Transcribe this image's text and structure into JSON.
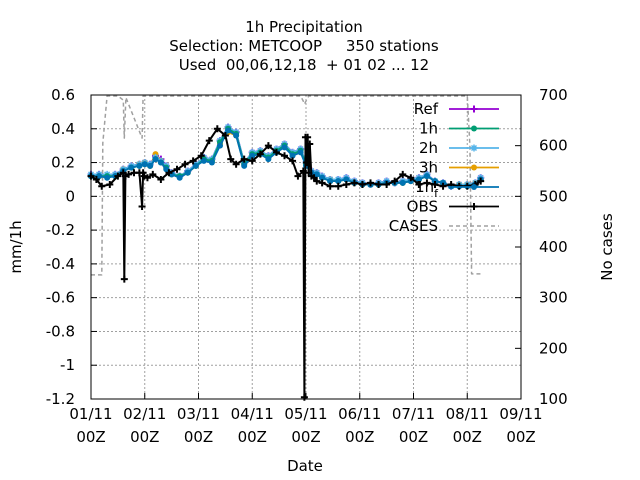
{
  "chart_data": {
    "type": "line",
    "title": {
      "line1": "1h Precipitation",
      "line2": "Selection: METCOOP     350 stations",
      "line3": "Used  00,06,12,18  + 01 02 ... 12"
    },
    "xlabel": "Date",
    "ylabel": "mm/1h",
    "y2label": "No cases",
    "x_ticks": [
      {
        "top": "01/11",
        "bottom": "00Z"
      },
      {
        "top": "02/11",
        "bottom": "00Z"
      },
      {
        "top": "03/11",
        "bottom": "00Z"
      },
      {
        "top": "04/11",
        "bottom": "00Z"
      },
      {
        "top": "05/11",
        "bottom": "00Z"
      },
      {
        "top": "06/11",
        "bottom": "00Z"
      },
      {
        "top": "07/11",
        "bottom": "00Z"
      },
      {
        "top": "08/11",
        "bottom": "00Z"
      },
      {
        "top": "09/11",
        "bottom": "00Z"
      }
    ],
    "xlim": [
      0,
      8
    ],
    "ylim": [
      -1.2,
      0.6
    ],
    "y_ticks": [
      {
        "value": 0.6,
        "label": "0.6"
      },
      {
        "value": 0.4,
        "label": "0.4"
      },
      {
        "value": 0.2,
        "label": "0.2"
      },
      {
        "value": 0,
        "label": "0"
      },
      {
        "value": -0.2,
        "label": "-0.2"
      },
      {
        "value": -0.4,
        "label": "-0.4"
      },
      {
        "value": -0.6,
        "label": "-0.6"
      },
      {
        "value": -0.8,
        "label": "-0.8"
      },
      {
        "value": -1,
        "label": "-1"
      },
      {
        "value": -1.2,
        "label": "-1.2"
      }
    ],
    "y2lim": [
      100,
      700
    ],
    "y2_ticks": [
      {
        "value": 700,
        "label": "700"
      },
      {
        "value": 600,
        "label": "600"
      },
      {
        "value": 500,
        "label": "500"
      },
      {
        "value": 400,
        "label": "400"
      },
      {
        "value": 300,
        "label": "300"
      },
      {
        "value": 200,
        "label": "200"
      },
      {
        "value": 100,
        "label": "100"
      }
    ],
    "grid": true,
    "legend_position": "top-right",
    "series": [
      {
        "name": "Ref",
        "label_main": "Ref",
        "label_sub": "",
        "color": "#9400d3",
        "marker": "plus",
        "axis": "y",
        "x": [
          0,
          0.15,
          0.3,
          0.45,
          0.6,
          0.75,
          0.9,
          1.0,
          1.1,
          1.2,
          1.3,
          1.4,
          1.5,
          1.65,
          1.8,
          1.95,
          2.1,
          2.25,
          2.4,
          2.55,
          2.7,
          2.85,
          3.0,
          3.15,
          3.3,
          3.45,
          3.6,
          3.75,
          3.9,
          4.0,
          4.1,
          4.2,
          4.3,
          4.45,
          4.6,
          4.75,
          4.9,
          5.05,
          5.2,
          5.35,
          5.5,
          5.65,
          5.8,
          5.95,
          6.1,
          6.25,
          6.4,
          6.55,
          6.7,
          6.85,
          7.0,
          7.15,
          7.25
        ],
        "y": [
          0.13,
          0.13,
          0.12,
          0.13,
          0.16,
          0.18,
          0.19,
          0.2,
          0.19,
          0.24,
          0.22,
          0.18,
          0.14,
          0.12,
          0.15,
          0.19,
          0.23,
          0.22,
          0.33,
          0.41,
          0.38,
          0.2,
          0.26,
          0.27,
          0.24,
          0.28,
          0.31,
          0.26,
          0.28,
          0.2,
          0.15,
          0.14,
          0.12,
          0.1,
          0.1,
          0.11,
          0.09,
          0.08,
          0.07,
          0.08,
          0.09,
          0.08,
          0.09,
          0.1,
          0.11,
          0.13,
          0.09,
          0.08,
          0.06,
          0.07,
          0.07,
          0.08,
          0.11
        ]
      },
      {
        "name": "1h",
        "label_main": "1h",
        "label_sub": "",
        "color": "#009e73",
        "marker": "circle",
        "axis": "y",
        "x": [
          0,
          0.15,
          0.3,
          0.45,
          0.6,
          0.75,
          0.9,
          1.0,
          1.1,
          1.2,
          1.3,
          1.4,
          1.5,
          1.65,
          1.8,
          1.95,
          2.1,
          2.25,
          2.4,
          2.55,
          2.7,
          2.85,
          3.0,
          3.15,
          3.3,
          3.45,
          3.6,
          3.75,
          3.9,
          4.0,
          4.1,
          4.2,
          4.3,
          4.45,
          4.6,
          4.75,
          4.9,
          5.05,
          5.2,
          5.35,
          5.5,
          5.65,
          5.8,
          5.95,
          6.1,
          6.25,
          6.4,
          6.55,
          6.7,
          6.85,
          7.0,
          7.15,
          7.25
        ],
        "y": [
          0.12,
          0.12,
          0.12,
          0.12,
          0.15,
          0.17,
          0.18,
          0.19,
          0.18,
          0.22,
          0.2,
          0.17,
          0.13,
          0.12,
          0.14,
          0.18,
          0.22,
          0.21,
          0.32,
          0.4,
          0.37,
          0.19,
          0.25,
          0.26,
          0.23,
          0.27,
          0.3,
          0.25,
          0.27,
          0.19,
          0.14,
          0.13,
          0.11,
          0.09,
          0.09,
          0.1,
          0.08,
          0.07,
          0.07,
          0.07,
          0.08,
          0.08,
          0.08,
          0.09,
          0.1,
          0.12,
          0.09,
          0.08,
          0.06,
          0.06,
          0.06,
          0.07,
          0.1
        ]
      },
      {
        "name": "2h",
        "label_main": "2h",
        "label_sub": "",
        "color": "#56b4e9",
        "marker": "star",
        "axis": "y",
        "x": [
          0,
          0.15,
          0.3,
          0.45,
          0.6,
          0.75,
          0.9,
          1.0,
          1.1,
          1.2,
          1.3,
          1.4,
          1.5,
          1.65,
          1.8,
          1.95,
          2.1,
          2.25,
          2.4,
          2.55,
          2.7,
          2.85,
          3.0,
          3.15,
          3.3,
          3.45,
          3.6,
          3.75,
          3.9,
          4.0,
          4.1,
          4.2,
          4.3,
          4.45,
          4.6,
          4.75,
          4.9,
          5.05,
          5.2,
          5.35,
          5.5,
          5.65,
          5.8,
          5.95,
          6.1,
          6.25,
          6.4,
          6.55,
          6.7,
          6.85,
          7.0,
          7.15,
          7.25
        ],
        "y": [
          0.13,
          0.13,
          0.13,
          0.13,
          0.16,
          0.18,
          0.19,
          0.2,
          0.19,
          0.23,
          0.21,
          0.18,
          0.14,
          0.12,
          0.15,
          0.19,
          0.23,
          0.22,
          0.33,
          0.41,
          0.38,
          0.2,
          0.26,
          0.27,
          0.24,
          0.28,
          0.31,
          0.26,
          0.28,
          0.2,
          0.15,
          0.14,
          0.12,
          0.1,
          0.1,
          0.11,
          0.09,
          0.08,
          0.07,
          0.08,
          0.09,
          0.08,
          0.09,
          0.1,
          0.11,
          0.13,
          0.09,
          0.08,
          0.06,
          0.07,
          0.07,
          0.08,
          0.11
        ]
      },
      {
        "name": "3h",
        "label_main": "3h",
        "label_sub": "",
        "color": "#e69f00",
        "marker": "circle",
        "axis": "y",
        "x": [
          0,
          0.15,
          0.3,
          0.45,
          0.6,
          0.75,
          0.9,
          1.0,
          1.1,
          1.2,
          1.3,
          1.4,
          1.5,
          1.65,
          1.8,
          1.95,
          2.1,
          2.25,
          2.4,
          2.55,
          2.7,
          2.85,
          3.0,
          3.15,
          3.3,
          3.45,
          3.6,
          3.75,
          3.9,
          4.0,
          4.1,
          4.2,
          4.3,
          4.45,
          4.6,
          4.75,
          4.9,
          5.05,
          5.2,
          5.35,
          5.5,
          5.65,
          5.8,
          5.95,
          6.1,
          6.25,
          6.4,
          6.55,
          6.7,
          6.85,
          7.0,
          7.15,
          7.25
        ],
        "y": [
          0.12,
          0.12,
          0.12,
          0.12,
          0.16,
          0.17,
          0.19,
          0.2,
          0.18,
          0.25,
          0.21,
          0.17,
          0.13,
          0.12,
          0.14,
          0.18,
          0.22,
          0.21,
          0.31,
          0.38,
          0.36,
          0.19,
          0.25,
          0.26,
          0.23,
          0.27,
          0.3,
          0.25,
          0.27,
          0.19,
          0.14,
          0.13,
          0.11,
          0.1,
          0.09,
          0.1,
          0.08,
          0.07,
          0.07,
          0.07,
          0.08,
          0.08,
          0.08,
          0.09,
          0.1,
          0.12,
          0.09,
          0.08,
          0.06,
          0.07,
          0.07,
          0.08,
          0.1
        ]
      },
      {
        "name": "1h_f",
        "label_main": "1h",
        "label_sub": "f",
        "color": "#0072b2",
        "marker": "circle",
        "axis": "y",
        "x": [
          0,
          0.15,
          0.3,
          0.45,
          0.6,
          0.75,
          0.9,
          1.0,
          1.1,
          1.2,
          1.3,
          1.4,
          1.5,
          1.65,
          1.8,
          1.95,
          2.1,
          2.25,
          2.4,
          2.55,
          2.7,
          2.85,
          3.0,
          3.15,
          3.3,
          3.45,
          3.6,
          3.75,
          3.9,
          4.0,
          4.1,
          4.2,
          4.3,
          4.45,
          4.6,
          4.75,
          4.9,
          5.05,
          5.2,
          5.35,
          5.5,
          5.65,
          5.8,
          5.95,
          6.1,
          6.25,
          6.4,
          6.55,
          6.7,
          6.85,
          7.0,
          7.15,
          7.25
        ],
        "y": [
          0.12,
          0.12,
          0.11,
          0.12,
          0.15,
          0.17,
          0.18,
          0.19,
          0.18,
          0.22,
          0.2,
          0.16,
          0.13,
          0.11,
          0.14,
          0.18,
          0.21,
          0.2,
          0.3,
          0.39,
          0.36,
          0.18,
          0.24,
          0.25,
          0.22,
          0.26,
          0.29,
          0.24,
          0.26,
          0.18,
          0.14,
          0.13,
          0.11,
          0.09,
          0.09,
          0.1,
          0.08,
          0.07,
          0.07,
          0.07,
          0.08,
          0.08,
          0.08,
          0.09,
          0.1,
          0.12,
          0.09,
          0.08,
          0.06,
          0.06,
          0.06,
          0.07,
          0.1
        ]
      },
      {
        "name": "OBS",
        "label_main": "OBS",
        "label_sub": "",
        "color": "#000000",
        "marker": "plus",
        "axis": "y",
        "x": [
          0,
          0.1,
          0.2,
          0.35,
          0.5,
          0.6,
          0.62,
          0.64,
          0.7,
          0.8,
          0.9,
          0.95,
          0.97,
          0.99,
          1.05,
          1.15,
          1.3,
          1.45,
          1.6,
          1.75,
          1.9,
          2.05,
          2.2,
          2.35,
          2.5,
          2.6,
          2.7,
          2.85,
          3.0,
          3.15,
          3.3,
          3.45,
          3.6,
          3.75,
          3.85,
          3.95,
          3.97,
          3.99,
          4.01,
          4.03,
          4.05,
          4.07,
          4.1,
          4.15,
          4.2,
          4.3,
          4.45,
          4.6,
          4.75,
          4.9,
          5.05,
          5.2,
          5.35,
          5.5,
          5.65,
          5.8,
          5.95,
          6.1,
          6.25,
          6.4,
          6.55,
          6.7,
          6.85,
          7.0,
          7.15,
          7.25
        ],
        "y": [
          0.12,
          0.1,
          0.06,
          0.07,
          0.12,
          0.14,
          -0.49,
          0.12,
          0.13,
          0.14,
          0.14,
          -0.06,
          0.14,
          0.12,
          0.11,
          0.13,
          0.1,
          0.14,
          0.16,
          0.19,
          0.21,
          0.24,
          0.33,
          0.4,
          0.36,
          0.22,
          0.19,
          0.22,
          0.21,
          0.25,
          0.3,
          0.26,
          0.24,
          0.21,
          0.12,
          0.15,
          -1.19,
          0.35,
          0.2,
          0.35,
          0.14,
          0.31,
          0.12,
          0.11,
          0.09,
          0.08,
          0.06,
          0.06,
          0.07,
          0.08,
          0.07,
          0.08,
          0.07,
          0.07,
          0.09,
          0.13,
          0.11,
          0.07,
          0.08,
          0.07,
          0.06,
          0.07,
          0.06,
          0.06,
          0.07,
          0.09
        ]
      },
      {
        "name": "CASES",
        "label_main": "CASES",
        "label_sub": "",
        "color": "#a0a0a0",
        "marker": "none",
        "axis": "y2",
        "dashed": true,
        "x": [
          0,
          0.2,
          0.22,
          0.3,
          0.5,
          0.6,
          0.62,
          0.65,
          0.95,
          0.97,
          1.0,
          1.5,
          2.0,
          3.0,
          3.9,
          3.95,
          3.97,
          4.05,
          4.5,
          5.0,
          6.0,
          7.0,
          7.05,
          7.08,
          7.25
        ],
        "y": [
          345,
          345,
          605,
          698,
          698,
          690,
          615,
          695,
          615,
          698,
          698,
          698,
          698,
          698,
          698,
          688,
          682,
          698,
          698,
          698,
          698,
          698,
          600,
          347,
          347
        ]
      }
    ]
  }
}
